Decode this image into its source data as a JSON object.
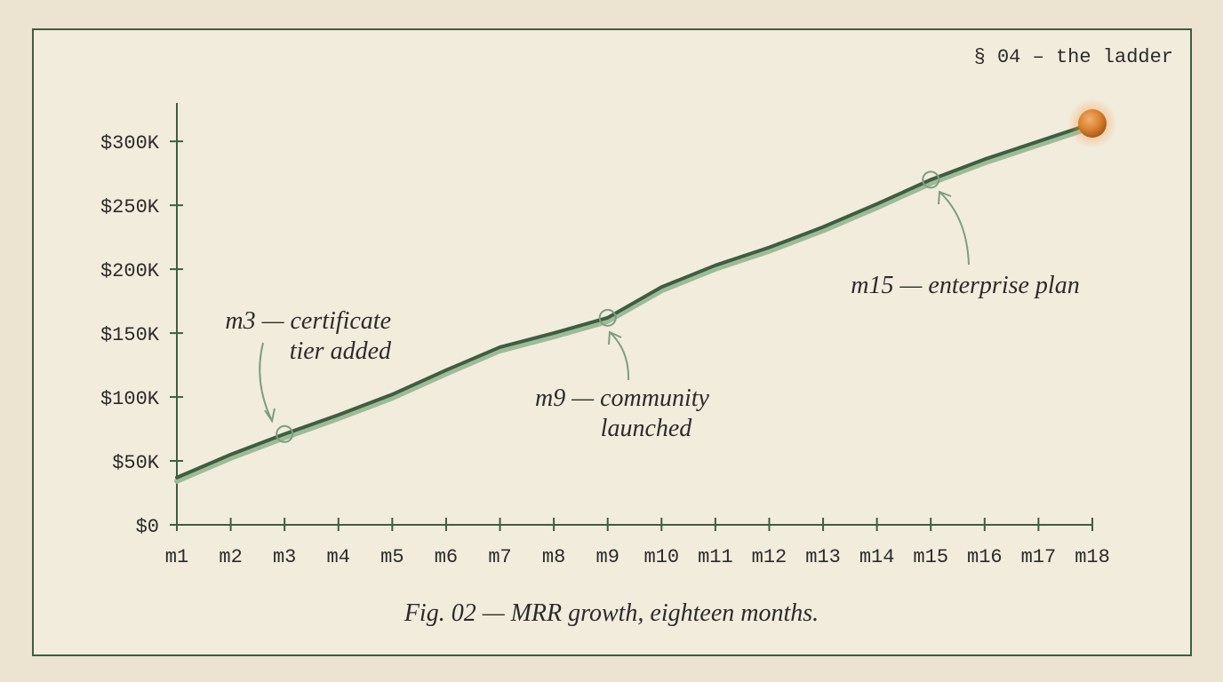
{
  "header": "§ 04 – the ladder",
  "chart_data": {
    "type": "line",
    "categories": [
      "m1",
      "m2",
      "m3",
      "m4",
      "m5",
      "m6",
      "m7",
      "m8",
      "m9",
      "m10",
      "m11",
      "m12",
      "m13",
      "m14",
      "m15",
      "m16",
      "m17",
      "m18"
    ],
    "values": [
      37000,
      55000,
      71000,
      86000,
      102000,
      121000,
      139000,
      150000,
      162000,
      186000,
      203000,
      217000,
      233000,
      251000,
      270000,
      286000,
      300000,
      314000
    ],
    "color": "#3d5e40",
    "ylim": [
      0,
      330000
    ],
    "yticks": [
      {
        "value": 0,
        "label": "$0"
      },
      {
        "value": 50000,
        "label": "$50K"
      },
      {
        "value": 100000,
        "label": "$100K"
      },
      {
        "value": 150000,
        "label": "$150K"
      },
      {
        "value": 200000,
        "label": "$200K"
      },
      {
        "value": 250000,
        "label": "$250K"
      },
      {
        "value": 300000,
        "label": "$300K"
      }
    ],
    "annotations": [
      {
        "lines": [
          "m3 — certificate",
          "tier added"
        ]
      },
      {
        "lines": [
          "m9 — community",
          "launched"
        ]
      },
      {
        "lines": [
          "m15 — enterprise plan"
        ]
      }
    ],
    "caption": "Fig. 02 — MRR growth, eighteen months."
  }
}
